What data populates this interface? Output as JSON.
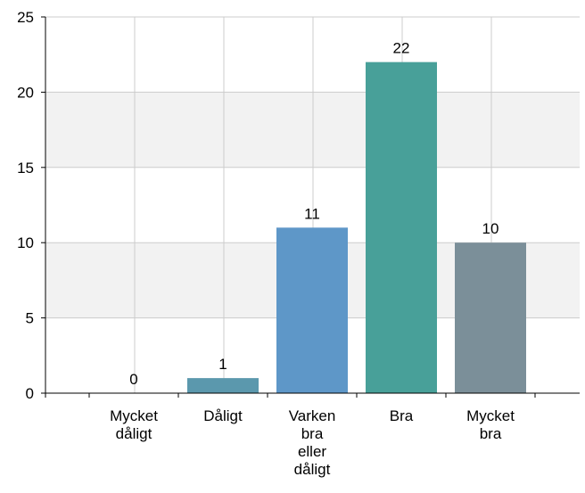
{
  "chart_data": {
    "type": "bar",
    "categories": [
      [
        "Mycket",
        "dåligt"
      ],
      [
        "Dåligt"
      ],
      [
        "Varken",
        "bra",
        "eller",
        "dåligt"
      ],
      [
        "Bra"
      ],
      [
        "Mycket",
        "bra"
      ]
    ],
    "values": [
      0,
      1,
      11,
      22,
      10
    ],
    "bar_colors": [
      "#6a8fa8",
      "#5b98ad",
      "#5e97c8",
      "#48a099",
      "#7b8f99"
    ],
    "band_color": "#f2f2f2",
    "grid_color": "#cccccc",
    "axis_color": "#000000",
    "ylim": [
      0,
      25
    ],
    "yticks": [
      0,
      5,
      10,
      15,
      20,
      25
    ],
    "grid": true,
    "data_labels": true
  }
}
